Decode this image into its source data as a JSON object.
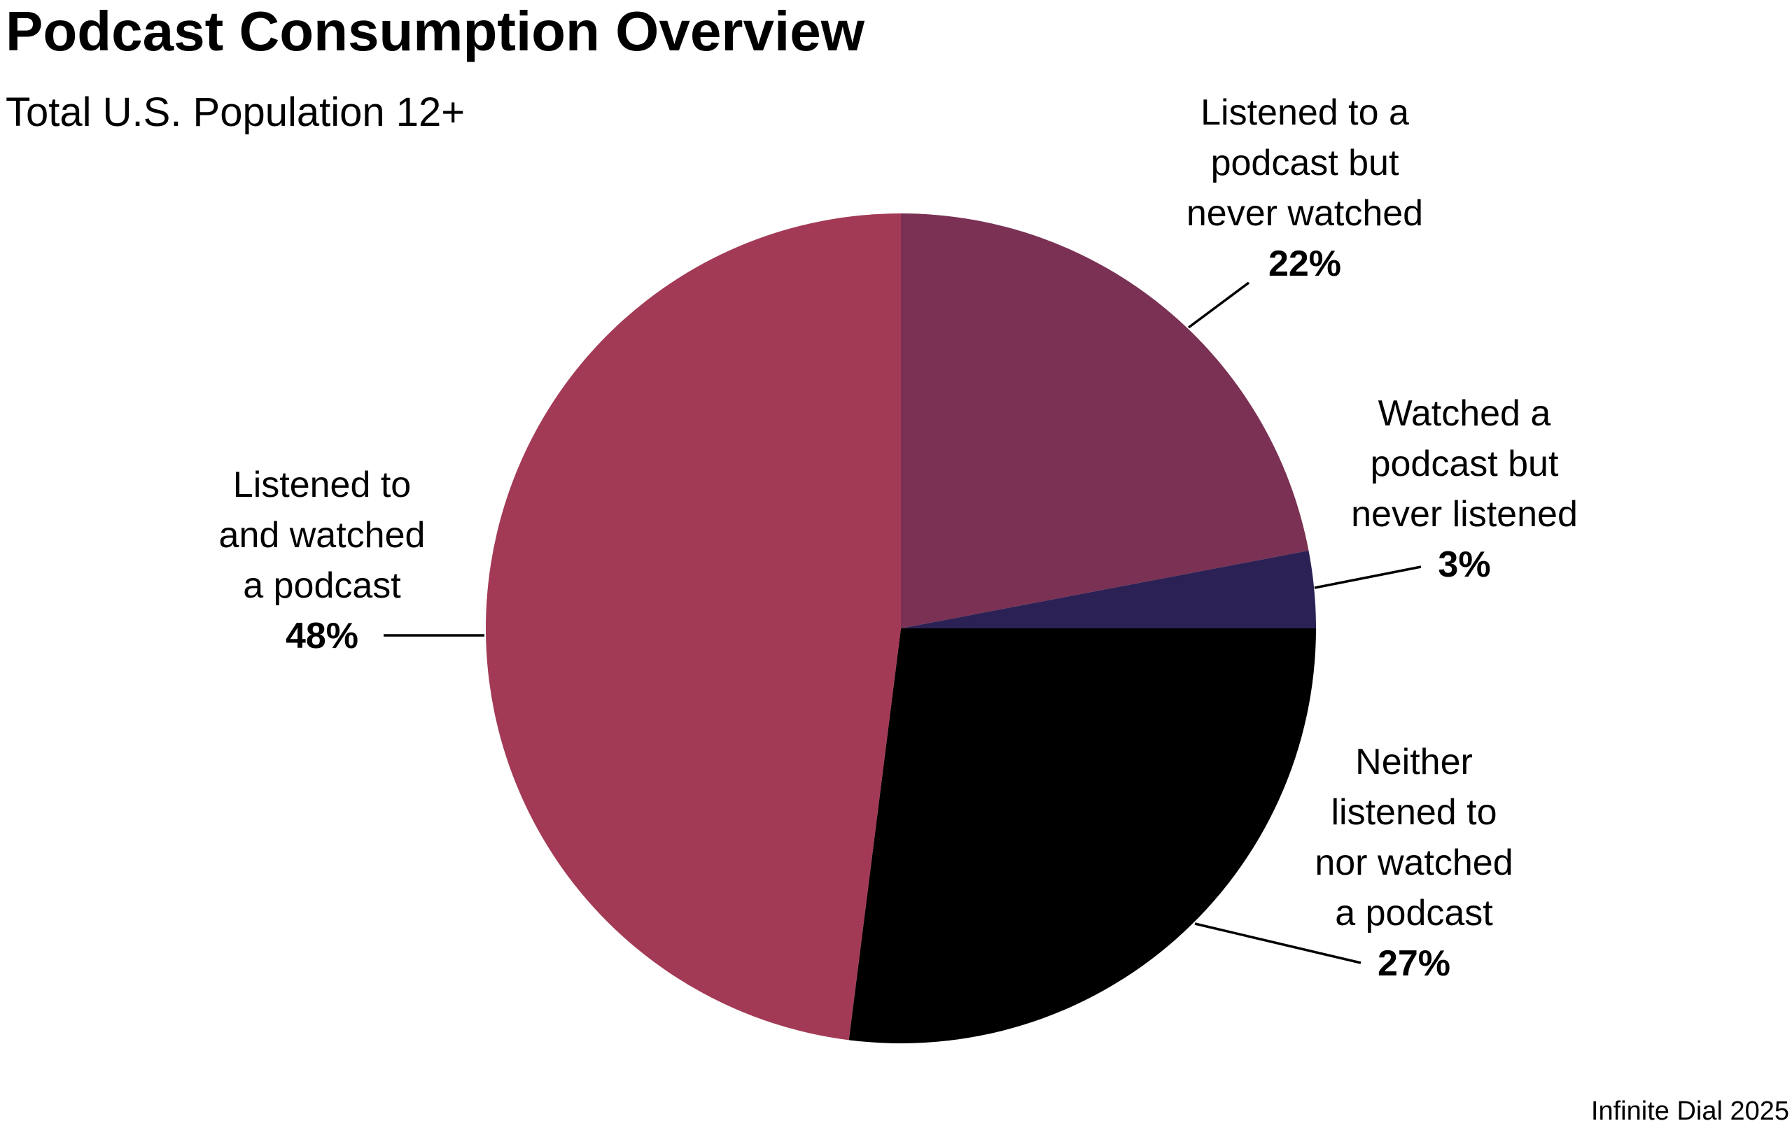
{
  "chart_data": {
    "type": "pie",
    "title": "Podcast Consumption Overview",
    "subtitle": "Total U.S. Population 12+",
    "source": "Infinite Dial 2025",
    "start_angle_deg": 0,
    "direction": "clockwise",
    "slices": [
      {
        "label_lines": [
          "Listened to a",
          "podcast but",
          "never watched"
        ],
        "value": 22,
        "value_label": "22%",
        "color": "#7a3154"
      },
      {
        "label_lines": [
          "Watched a",
          "podcast but",
          "never listened"
        ],
        "value": 3,
        "value_label": "3%",
        "color": "#2b2154"
      },
      {
        "label_lines": [
          "Neither",
          "listened to",
          "nor watched",
          "a podcast"
        ],
        "value": 27,
        "value_label": "27%",
        "color": "#000000"
      },
      {
        "label_lines": [
          "Listened to",
          "and watched",
          "a podcast"
        ],
        "value": 48,
        "value_label": "48%",
        "color": "#a33a55"
      }
    ]
  }
}
